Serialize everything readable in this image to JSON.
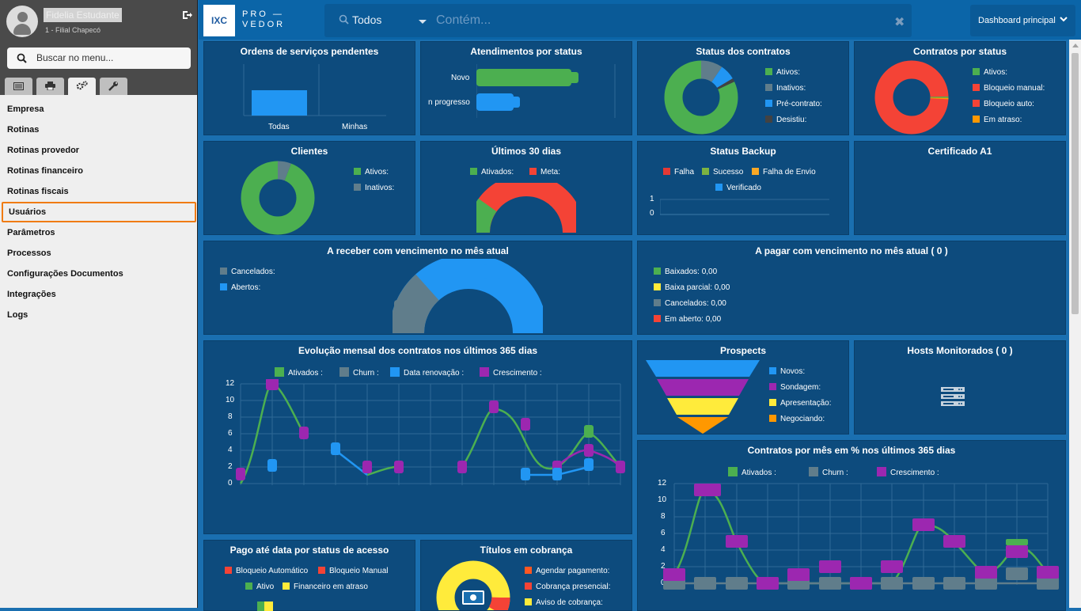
{
  "sidebar": {
    "user_name": "Fidelia Estudante",
    "filial": "1 - Filial Chapecó",
    "search_placeholder": "Buscar no menu...",
    "menu": [
      "Empresa",
      "Rotinas",
      "Rotinas provedor",
      "Rotinas financeiro",
      "Rotinas fiscais",
      "Usuários",
      "Parâmetros",
      "Processos",
      "Configurações Documentos",
      "Integrações",
      "Logs"
    ],
    "highlighted": "Usuários"
  },
  "header": {
    "logo_text": "IXC",
    "brand_line1": "PRO —",
    "brand_line2": "VEDOR",
    "search_select": "Todos",
    "search_placeholder": "Contém...",
    "dashboard_select": "Dashboard principal"
  },
  "cards": {
    "ordens": {
      "title": "Ordens de serviços pendentes",
      "labels": [
        "Todas",
        "Minhas"
      ]
    },
    "atendimentos": {
      "title": "Atendimentos por status",
      "labels": [
        "Novo",
        "n progresso"
      ]
    },
    "status_contratos": {
      "title": "Status dos contratos",
      "legend": [
        "Ativos:",
        "Inativos:",
        "Pré-contrato:",
        "Desistiu:"
      ]
    },
    "contratos_status": {
      "title": "Contratos por status",
      "legend": [
        "Ativos:",
        "Bloqueio manual:",
        "Bloqueio auto:",
        "Em atraso:"
      ]
    },
    "clientes": {
      "title": "Clientes",
      "legend": [
        "Ativos:",
        "Inativos:"
      ]
    },
    "ultimos30": {
      "title": "Últimos 30 dias",
      "legend": [
        "Ativados:",
        "Meta:"
      ]
    },
    "backup": {
      "title": "Status Backup",
      "legend": [
        "Falha",
        "Sucesso",
        "Falha de Envio",
        "Verificado"
      ],
      "yticks": [
        "1",
        "0"
      ]
    },
    "certificado": {
      "title": "Certificado A1"
    },
    "receber": {
      "title": "A receber com vencimento no mês atual",
      "legend": [
        "Cancelados:",
        "Abertos:"
      ]
    },
    "pagar": {
      "title": "A pagar com vencimento no mês atual ( 0 )",
      "legend": [
        "Baixados: 0,00",
        "Baixa parcial: 0,00",
        "Cancelados: 0,00",
        "Em aberto: 0,00"
      ]
    },
    "evolucao": {
      "title": "Evolução mensal dos contratos nos últimos 365 dias",
      "legend": [
        "Ativados :",
        "Churn :",
        "Data renovação :",
        "Crescimento :"
      ],
      "yticks": [
        "12",
        "10",
        "8",
        "6",
        "4",
        "2",
        "0"
      ]
    },
    "prospects": {
      "title": "Prospects",
      "legend": [
        "Novos:",
        "Sondagem:",
        "Apresentação:",
        "Negociando:"
      ]
    },
    "hosts": {
      "title": "Hosts Monitorados ( 0 )"
    },
    "contratos_mes": {
      "title": "Contratos por mês em % nos últimos 365 dias",
      "legend": [
        "Ativados :",
        "Churn :",
        "Crescimento :"
      ],
      "yticks": [
        "12",
        "10",
        "8",
        "6",
        "4",
        "2",
        "0"
      ]
    },
    "pago": {
      "title": "Pago até data por status de acesso",
      "legend": [
        "Bloqueio Automático",
        "Bloqueio Manual",
        "Ativo",
        "Financeiro em atraso"
      ]
    },
    "titulos": {
      "title": "Títulos em cobrança",
      "legend": [
        "Agendar pagamento:",
        "Cobrança presencial:",
        "Aviso de cobrança:"
      ]
    }
  },
  "colors": {
    "green": "#4caf50",
    "gray": "#5f7f8f",
    "blue": "#2196f3",
    "purple": "#9c27b0",
    "red": "#f44336",
    "orange": "#ff9800",
    "yellow": "#ffeb3b",
    "darkgray": "#424242",
    "highlight": "#f07b12"
  }
}
